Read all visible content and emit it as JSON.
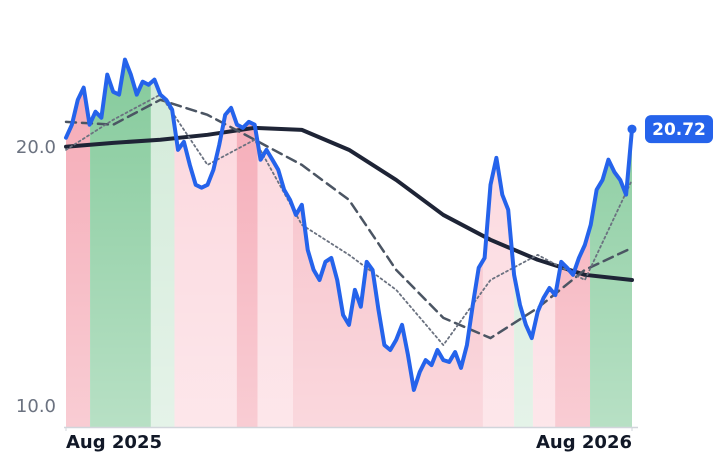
{
  "chart_data": {
    "type": "line",
    "x": [
      0,
      0.125,
      0.25,
      0.375,
      0.5,
      0.625,
      0.75,
      0.875,
      1,
      1.125,
      1.25,
      1.375,
      1.5,
      1.625,
      1.75,
      1.875,
      2,
      2.125,
      2.25,
      2.375,
      2.5,
      2.625,
      2.75,
      2.875,
      3,
      3.125,
      3.25,
      3.375,
      3.5,
      3.625,
      3.75,
      3.875,
      4,
      4.125,
      4.25,
      4.375,
      4.5,
      4.625,
      4.75,
      4.875,
      5,
      5.125,
      5.25,
      5.375,
      5.5,
      5.625,
      5.75,
      5.875,
      6,
      6.125,
      6.25,
      6.375,
      6.5,
      6.625,
      6.75,
      6.875,
      7,
      7.125,
      7.25,
      7.375,
      7.5,
      7.625,
      7.75,
      7.875,
      8,
      8.125,
      8.25,
      8.375,
      8.5,
      8.625,
      8.75,
      8.875,
      9,
      9.125,
      9.25,
      9.375,
      9.5,
      9.625,
      9.75,
      9.875,
      10,
      10.125,
      10.25,
      10.375,
      10.5,
      10.625,
      10.75,
      10.875,
      11,
      11.125,
      11.25,
      11.375,
      11.5,
      11.625,
      11.75,
      11.875,
      12
    ],
    "series": [
      {
        "color": "#2563eb",
        "line_style": "solid",
        "width": 4,
        "values": [
          20.39,
          20.89,
          21.85,
          22.32,
          20.89,
          21.39,
          21.16,
          22.82,
          22.16,
          22.05,
          23.4,
          22.82,
          22.05,
          22.55,
          22.43,
          22.63,
          22.05,
          21.85,
          21.47,
          19.92,
          20.23,
          19.34,
          18.57,
          18.46,
          18.57,
          19.15,
          20.12,
          21.27,
          21.54,
          20.89,
          20.77,
          21.0,
          20.89,
          19.54,
          19.92,
          19.54,
          19.15,
          18.38,
          17.99,
          17.41,
          17.8,
          16.06,
          15.29,
          14.9,
          15.6,
          15.75,
          14.9,
          13.55,
          13.17,
          14.52,
          13.87,
          15.6,
          15.29,
          13.75,
          12.39,
          12.2,
          12.59,
          13.17,
          12.01,
          10.66,
          11.35,
          11.81,
          11.62,
          12.2,
          11.81,
          11.74,
          12.12,
          11.51,
          12.39,
          13.94,
          15.37,
          15.75,
          18.57,
          19.61,
          18.19,
          17.61,
          15.1,
          13.94,
          13.17,
          12.66,
          13.67,
          14.21,
          14.59,
          14.32,
          15.6,
          15.37,
          15.1,
          15.75,
          16.25,
          17.03,
          18.38,
          18.76,
          19.54,
          19.07,
          18.76,
          18.19,
          20.72
        ]
      },
      {
        "color": "#1e2436",
        "line_style": "solid",
        "width": 4,
        "x": [
          0,
          1,
          2,
          3,
          4,
          5,
          6,
          7,
          8,
          9,
          10,
          11,
          12
        ],
        "values": [
          20.04,
          20.19,
          20.31,
          20.5,
          20.77,
          20.69,
          19.92,
          18.76,
          17.41,
          16.45,
          15.68,
          15.1,
          14.9
        ]
      },
      {
        "color": "#4b5563",
        "line_style": "dashed",
        "width": 2.5,
        "x": [
          0,
          1,
          2,
          3,
          4,
          5,
          6,
          7,
          8,
          9,
          10,
          11,
          12
        ],
        "values": [
          21.0,
          20.89,
          21.85,
          21.27,
          20.31,
          19.34,
          17.99,
          15.29,
          13.44,
          12.66,
          13.82,
          15.29,
          16.14
        ]
      },
      {
        "color": "#6b7280",
        "line_style": "dotted",
        "width": 1.8,
        "x": [
          0,
          1,
          2,
          3,
          4,
          5,
          6,
          7,
          8,
          9,
          10,
          11,
          12
        ],
        "values": [
          19.92,
          21.08,
          22.05,
          19.34,
          20.31,
          17.03,
          15.87,
          14.52,
          12.39,
          14.9,
          15.87,
          14.9,
          18.76
        ]
      }
    ],
    "regions": [
      {
        "start": 0,
        "end": 0.51,
        "color": "#f4a3b0"
      },
      {
        "start": 0.51,
        "end": 1.8,
        "color": "#7dc795"
      },
      {
        "start": 1.8,
        "end": 2.3,
        "color": "#cfe9d6"
      },
      {
        "start": 2.3,
        "end": 3.62,
        "color": "#fbd3da"
      },
      {
        "start": 3.62,
        "end": 4.06,
        "color": "#f4a3b0"
      },
      {
        "start": 4.06,
        "end": 4.81,
        "color": "#fbd3da"
      },
      {
        "start": 4.81,
        "end": 8.84,
        "color": "#f6b8c2"
      },
      {
        "start": 8.84,
        "end": 9.5,
        "color": "#fbd3da"
      },
      {
        "start": 9.5,
        "end": 9.9,
        "color": "#cfe9d6"
      },
      {
        "start": 9.9,
        "end": 10.37,
        "color": "#fbd3da"
      },
      {
        "start": 10.37,
        "end": 11.11,
        "color": "#f4a3b0"
      },
      {
        "start": 11.11,
        "end": 12,
        "color": "#7dc795"
      }
    ],
    "xlim": [
      0,
      12
    ],
    "xticks": [
      {
        "value": 0,
        "label": "Aug 2025"
      },
      {
        "value": 12,
        "label": "Aug 2026"
      }
    ],
    "ylim": [
      9.23,
      25.7
    ],
    "yticks": [
      {
        "value": 10,
        "label": "10.0"
      },
      {
        "value": 20,
        "label": "20.0"
      }
    ],
    "badge_color": "#2563eb"
  }
}
